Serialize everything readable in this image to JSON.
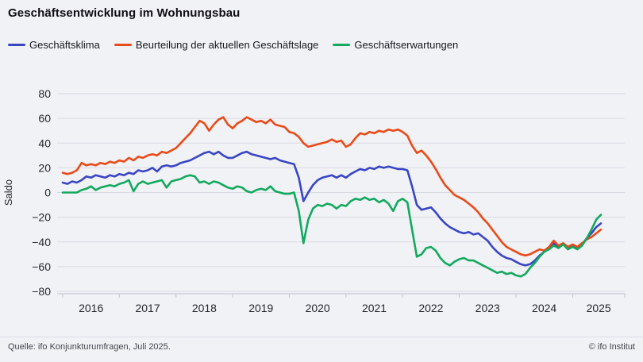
{
  "footer": {
    "source": "Quelle: ifo Konjunkturumfragen,  Juli 2025.",
    "copyright": "© ifo Institut"
  },
  "colors": {
    "background": "#f1f2f6",
    "grid": "#d9dbe2",
    "axis": "#c7cad2",
    "tick_text": "#26282e",
    "title_text": "#0e0e14"
  },
  "chart_data": {
    "type": "line",
    "title": "Geschäftsentwicklung im Wohnungsbau",
    "ylabel": "Saldo",
    "xlabel": "",
    "frequency": "monthly",
    "x_start": "2016-01",
    "x_end": "2025-07",
    "x_tick_labels": [
      "2016",
      "2017",
      "2018",
      "2019",
      "2020",
      "2021",
      "2022",
      "2023",
      "2024",
      "2025"
    ],
    "y_ticks": [
      80,
      60,
      40,
      20,
      0,
      -20,
      -40,
      -60,
      -80
    ],
    "ylim": [
      -80,
      80
    ],
    "grid": "horizontal",
    "legend_position": "top-left",
    "series": [
      {
        "name": "Geschäftsklima",
        "color": "#3a45c4",
        "values": [
          8,
          7,
          9,
          8,
          10,
          13,
          12,
          14,
          13,
          12,
          14,
          13,
          15,
          14,
          16,
          15,
          18,
          17,
          18,
          20,
          17,
          21,
          22,
          21,
          22,
          24,
          25,
          26,
          28,
          30,
          32,
          33,
          31,
          33,
          30,
          28,
          28,
          30,
          32,
          33,
          31,
          30,
          29,
          28,
          27,
          28,
          26,
          25,
          24,
          23,
          12,
          -7,
          0,
          6,
          10,
          12,
          13,
          14,
          12,
          14,
          12,
          15,
          17,
          19,
          18,
          20,
          19,
          21,
          20,
          21,
          20,
          19,
          19,
          18,
          5,
          -10,
          -14,
          -13,
          -12,
          -16,
          -21,
          -25,
          -28,
          -30,
          -32,
          -33,
          -32,
          -34,
          -33,
          -36,
          -39,
          -44,
          -48,
          -51,
          -53,
          -54,
          -56,
          -58,
          -59,
          -58,
          -55,
          -51,
          -48,
          -45,
          -41,
          -44,
          -42,
          -45,
          -43,
          -45,
          -42,
          -37,
          -33,
          -28,
          -25
        ]
      },
      {
        "name": "Beurteilung der aktuellen Geschäftslage",
        "color": "#ea4a17",
        "values": [
          16,
          15,
          16,
          18,
          24,
          22,
          23,
          22,
          24,
          23,
          25,
          24,
          26,
          25,
          28,
          26,
          29,
          28,
          30,
          31,
          30,
          33,
          32,
          34,
          36,
          40,
          44,
          48,
          53,
          58,
          56,
          50,
          55,
          59,
          61,
          55,
          52,
          56,
          58,
          61,
          59,
          57,
          58,
          56,
          59,
          55,
          54,
          53,
          49,
          48,
          45,
          40,
          37,
          38,
          39,
          40,
          41,
          43,
          41,
          42,
          37,
          39,
          44,
          48,
          47,
          49,
          48,
          50,
          49,
          51,
          50,
          51,
          49,
          46,
          38,
          32,
          34,
          30,
          25,
          19,
          12,
          6,
          2,
          -2,
          -4,
          -6,
          -9,
          -12,
          -16,
          -21,
          -25,
          -30,
          -35,
          -40,
          -44,
          -46,
          -48,
          -50,
          -51,
          -50,
          -48,
          -46,
          -47,
          -44,
          -39,
          -43,
          -41,
          -44,
          -42,
          -44,
          -41,
          -38,
          -36,
          -33,
          -30
        ]
      },
      {
        "name": "Geschäftserwartungen",
        "color": "#12a95e",
        "values": [
          0,
          0,
          0,
          0,
          2,
          3,
          5,
          2,
          4,
          5,
          6,
          5,
          7,
          8,
          10,
          1,
          7,
          9,
          7,
          8,
          9,
          10,
          4,
          9,
          10,
          11,
          13,
          14,
          13,
          8,
          9,
          7,
          9,
          8,
          6,
          4,
          3,
          5,
          4,
          1,
          0,
          2,
          3,
          2,
          5,
          1,
          0,
          -1,
          -1,
          0,
          -15,
          -41,
          -22,
          -13,
          -10,
          -11,
          -9,
          -10,
          -13,
          -10,
          -11,
          -7,
          -5,
          -6,
          -4,
          -6,
          -5,
          -8,
          -6,
          -9,
          -15,
          -7,
          -5,
          -8,
          -30,
          -52,
          -50,
          -45,
          -44,
          -47,
          -53,
          -57,
          -59,
          -56,
          -54,
          -53,
          -55,
          -55,
          -57,
          -59,
          -61,
          -63,
          -65,
          -64,
          -66,
          -65,
          -67,
          -68,
          -66,
          -61,
          -57,
          -52,
          -48,
          -46,
          -43,
          -45,
          -42,
          -46,
          -44,
          -46,
          -43,
          -37,
          -30,
          -22,
          -18
        ]
      }
    ]
  }
}
